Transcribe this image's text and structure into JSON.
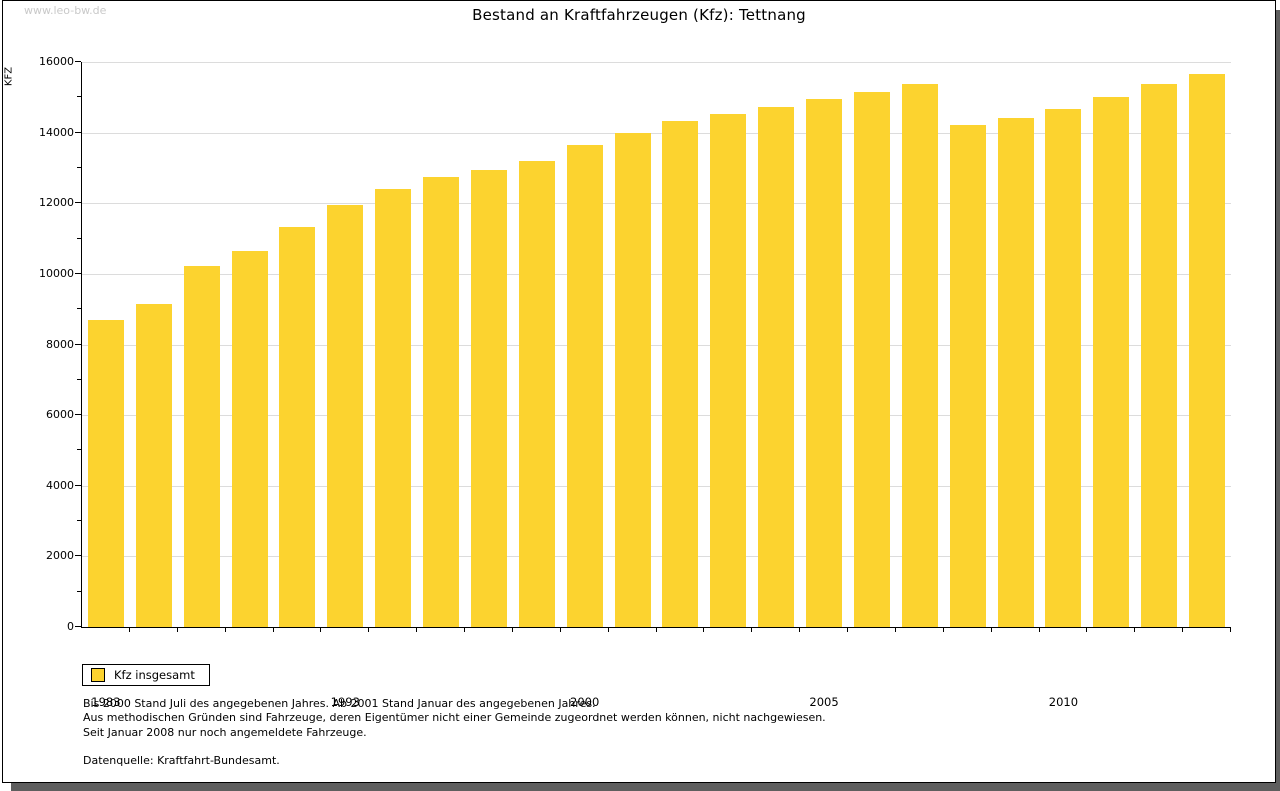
{
  "watermark": "www.leo-bw.de",
  "header": {
    "title": "Bestand an Kraftfahrzeugen (Kfz): Tettnang"
  },
  "chart_data": {
    "type": "bar",
    "title": "Bestand an Kraftfahrzeugen (Kfz): Tettnang",
    "xlabel": "",
    "ylabel": "KFZ",
    "ylim": [
      0,
      16000
    ],
    "y_major_ticks": [
      0,
      2000,
      4000,
      6000,
      8000,
      10000,
      12000,
      14000,
      16000
    ],
    "y_minor_step": 1000,
    "grid": true,
    "gridline_color": "#dcdcdc",
    "bar_color": "#fcd32f",
    "bar_count": 24,
    "values": [
      8700,
      9150,
      10230,
      10640,
      11330,
      11960,
      12390,
      12730,
      12950,
      13190,
      13650,
      13980,
      14320,
      14520,
      14730,
      14960,
      15160,
      15370,
      14210,
      14410,
      14660,
      15000,
      15380,
      15670
    ],
    "x_tick_labels": [
      {
        "label": "1983",
        "bar_index": 0
      },
      {
        "label": "1993",
        "bar_index": 5
      },
      {
        "label": "2000",
        "bar_index": 10
      },
      {
        "label": "2005",
        "bar_index": 15
      },
      {
        "label": "2010",
        "bar_index": 20
      }
    ],
    "legend": [
      {
        "label": "Kfz insgesamt",
        "color": "#fcd32f"
      }
    ],
    "legend_position": "bottom-left"
  },
  "legend": {
    "kfz_label": "Kfz insgesamt"
  },
  "footnotes": {
    "line1": "Bis 2000 Stand Juli des angegebenen Jahres. Ab 2001 Stand Januar des angegebenen Jahres.",
    "line2": "Aus methodischen Gründen sind Fahrzeuge, deren Eigentümer nicht einer Gemeinde zugeordnet werden können, nicht nachgewiesen.",
    "line3": "Seit Januar 2008 nur noch angemeldete Fahrzeuge.",
    "datasource": "Datenquelle: Kraftfahrt-Bundesamt."
  }
}
